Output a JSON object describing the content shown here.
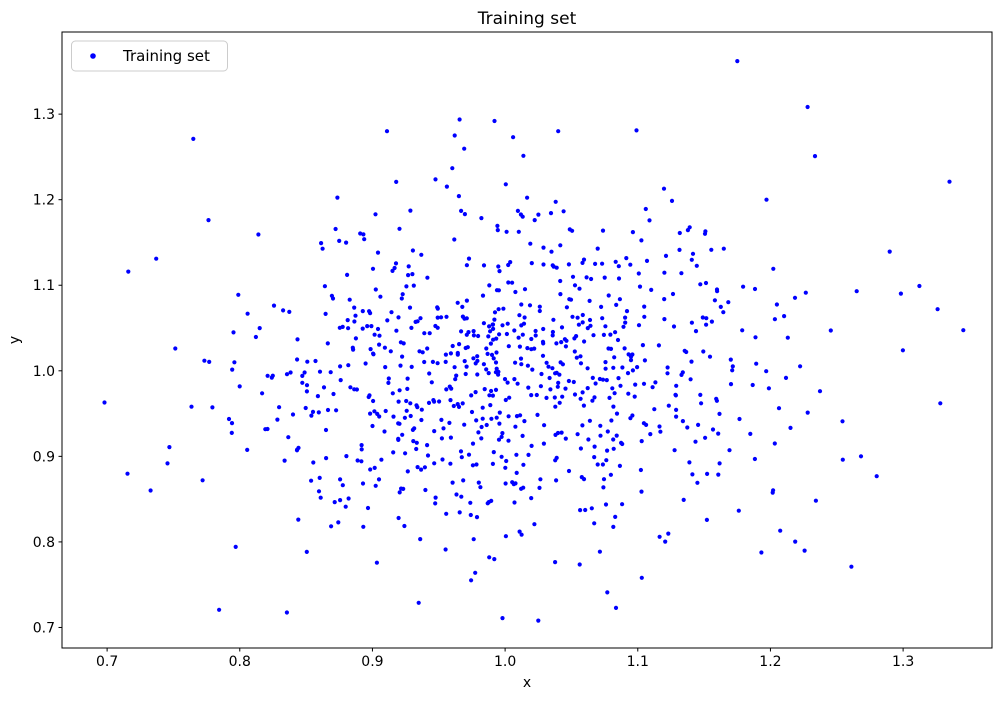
{
  "chart_data": {
    "type": "scatter",
    "title": "Training set",
    "xlabel": "x",
    "ylabel": "y",
    "xlim": [
      0.666,
      1.367
    ],
    "ylim": [
      0.676,
      1.396
    ],
    "xticks": [
      0.7,
      0.8,
      0.9,
      1.0,
      1.1,
      1.2,
      1.3
    ],
    "yticks": [
      0.7,
      0.8,
      0.9,
      1.0,
      1.1,
      1.2,
      1.3
    ],
    "grid": false,
    "background_color": "#ffffff",
    "spine_color": "#000000",
    "legend": {
      "position": "upper left",
      "entries": [
        {
          "label": "Training set",
          "marker": "dot",
          "color": "#0000ff"
        }
      ]
    },
    "series": [
      {
        "name": "Training set",
        "marker": {
          "shape": "dot",
          "color": "#0000ff",
          "radius_px": 2.1
        },
        "points_are_estimated_from_pixels": true,
        "cloud": {
          "distribution": "gaussian",
          "center": [
            1.0,
            1.0
          ],
          "std": [
            0.1,
            0.1
          ],
          "n": 832,
          "seed": 11
        },
        "notable_points": [
          [
            1.175,
            1.362
          ],
          [
            0.992,
            1.292
          ],
          [
            1.04,
            1.28
          ],
          [
            1.099,
            1.281
          ],
          [
            0.962,
            1.275
          ],
          [
            1.006,
            1.273
          ],
          [
            0.765,
            1.271
          ],
          [
            1.335,
            1.221
          ],
          [
            1.326,
            1.072
          ],
          [
            1.328,
            0.962
          ],
          [
            0.698,
            0.963
          ],
          [
            0.716,
            1.116
          ],
          [
            0.737,
            1.131
          ],
          [
            1.265,
            1.093
          ],
          [
            1.197,
            1.2
          ],
          [
            1.261,
            0.771
          ],
          [
            1.077,
            0.741
          ],
          [
            1.103,
            0.758
          ],
          [
            0.998,
            0.711
          ],
          [
            1.025,
            0.708
          ]
        ]
      }
    ]
  }
}
